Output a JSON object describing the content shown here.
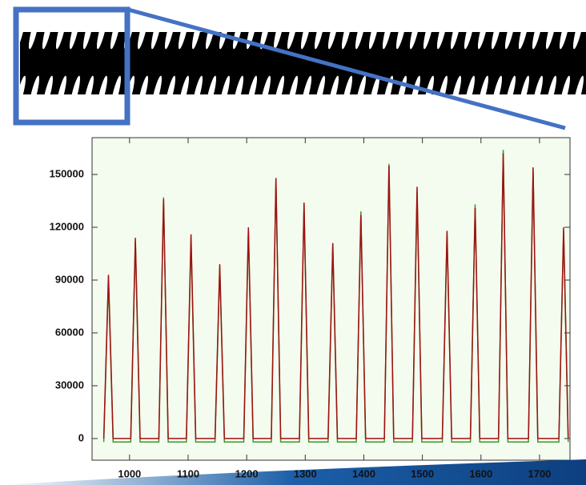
{
  "chart_data": {
    "type": "line",
    "x": [
      956,
      964,
      972,
      1002,
      1010,
      1018,
      1050,
      1058,
      1066,
      1097,
      1105,
      1113,
      1146,
      1154,
      1162,
      1195,
      1203,
      1211,
      1242,
      1250,
      1258,
      1290,
      1298,
      1306,
      1339,
      1347,
      1355,
      1387,
      1395,
      1403,
      1435,
      1443,
      1451,
      1483,
      1491,
      1499,
      1534,
      1542,
      1550,
      1582,
      1590,
      1598,
      1630,
      1638,
      1646,
      1681,
      1689,
      1697,
      1733,
      1741,
      1749
    ],
    "series": [
      {
        "color": "#3a9a2a",
        "values": [
          -2000,
          90000,
          -2000,
          -2000,
          112000,
          -2000,
          -2000,
          137000,
          -2000,
          -2000,
          113000,
          -2000,
          -2000,
          97000,
          -2000,
          -2000,
          118000,
          -2000,
          -2000,
          146000,
          -2000,
          -2000,
          132000,
          -2000,
          -2000,
          109000,
          -2000,
          -2000,
          129000,
          -2000,
          -2000,
          156000,
          -2000,
          -2000,
          140000,
          -2000,
          -2000,
          116000,
          -2000,
          -2000,
          133000,
          -2000,
          -2000,
          164000,
          -2000,
          -2000,
          152000,
          -2000,
          -2000,
          118000,
          -2000
        ]
      },
      {
        "color": "#a01010",
        "values": [
          0,
          93000,
          0,
          0,
          114000,
          0,
          0,
          136000,
          0,
          0,
          116000,
          0,
          0,
          99000,
          0,
          0,
          120000,
          0,
          0,
          148000,
          0,
          0,
          134000,
          0,
          0,
          111000,
          0,
          0,
          127000,
          0,
          0,
          155000,
          0,
          0,
          143000,
          0,
          0,
          118000,
          0,
          0,
          131000,
          0,
          0,
          162000,
          0,
          0,
          154000,
          0,
          0,
          120000,
          0
        ]
      }
    ],
    "xlim": [
      936,
      1752
    ],
    "ylim": [
      -12300,
      170900
    ],
    "xticks": [
      1000,
      1100,
      1200,
      1300,
      1400,
      1500,
      1600,
      1700
    ],
    "yticks": [
      0,
      30000,
      60000,
      90000,
      120000,
      150000
    ],
    "grid": false
  }
}
